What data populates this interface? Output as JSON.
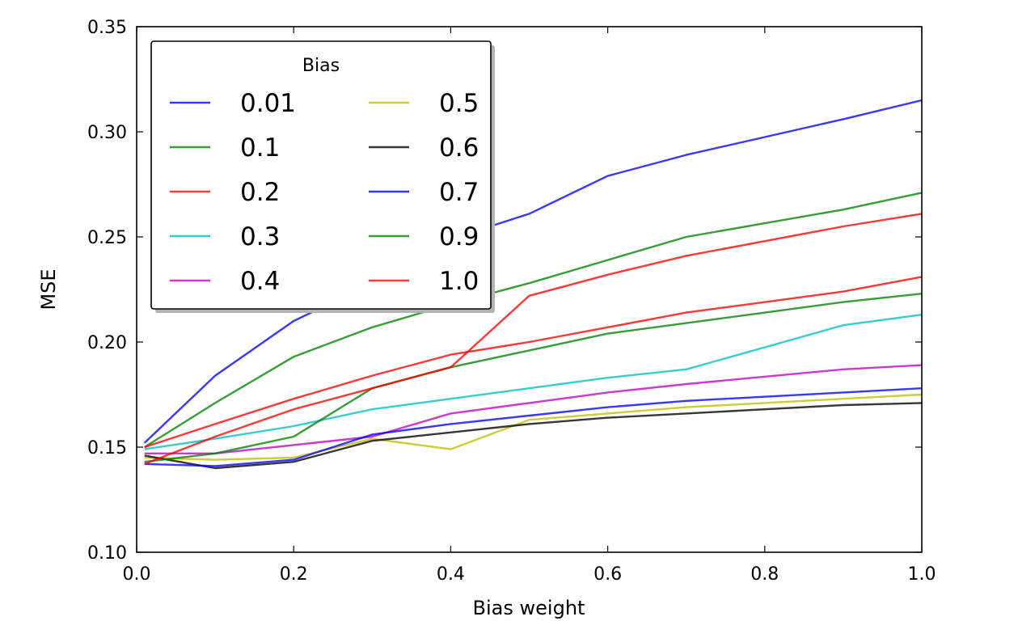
{
  "chart_data": {
    "type": "line",
    "title": "",
    "xlabel": "Bias weight",
    "ylabel": "MSE",
    "xlim": [
      0.0,
      1.0
    ],
    "ylim": [
      0.1,
      0.35
    ],
    "xticks": [
      "0.0",
      "0.2",
      "0.4",
      "0.6",
      "0.8",
      "1.0"
    ],
    "yticks": [
      "0.10",
      "0.15",
      "0.20",
      "0.25",
      "0.30",
      "0.35"
    ],
    "grid": false,
    "legend": {
      "title": "Bias",
      "position": "top-left",
      "columns": 2
    },
    "x": [
      0.01,
      0.1,
      0.2,
      0.3,
      0.4,
      0.5,
      0.6,
      0.7,
      0.9,
      1.0
    ],
    "series": [
      {
        "name": "0.01",
        "color": "#0000ff",
        "values": [
          0.152,
          0.184,
          0.21,
          0.228,
          0.249,
          0.261,
          0.279,
          0.289,
          0.306,
          0.315
        ]
      },
      {
        "name": "0.1",
        "color": "#008000",
        "values": [
          0.15,
          0.171,
          0.193,
          0.207,
          0.218,
          0.228,
          0.239,
          0.25,
          0.263,
          0.271
        ]
      },
      {
        "name": "0.2",
        "color": "#ff0000",
        "values": [
          0.15,
          0.161,
          0.173,
          0.184,
          0.194,
          0.2,
          0.207,
          0.214,
          0.224,
          0.231
        ]
      },
      {
        "name": "0.3",
        "color": "#00bfbf",
        "values": [
          0.149,
          0.154,
          0.16,
          0.168,
          0.173,
          0.178,
          0.183,
          0.187,
          0.208,
          0.213
        ]
      },
      {
        "name": "0.4",
        "color": "#bf00bf",
        "values": [
          0.147,
          0.147,
          0.151,
          0.155,
          0.166,
          0.171,
          0.176,
          0.18,
          0.187,
          0.189
        ]
      },
      {
        "name": "0.5",
        "color": "#bfbf00",
        "values": [
          0.145,
          0.144,
          0.145,
          0.154,
          0.149,
          0.163,
          0.166,
          0.169,
          0.173,
          0.175
        ]
      },
      {
        "name": "0.6",
        "color": "#000000",
        "values": [
          0.146,
          0.14,
          0.143,
          0.153,
          0.157,
          0.161,
          0.164,
          0.166,
          0.17,
          0.171
        ]
      },
      {
        "name": "0.7",
        "color": "#0000ff",
        "values": [
          0.142,
          0.141,
          0.144,
          0.156,
          0.161,
          0.165,
          0.169,
          0.172,
          0.176,
          0.178
        ]
      },
      {
        "name": "0.9",
        "color": "#008000",
        "values": [
          0.143,
          0.147,
          0.155,
          0.178,
          0.188,
          0.196,
          0.204,
          0.209,
          0.219,
          0.223
        ]
      },
      {
        "name": "1.0",
        "color": "#ff0000",
        "values": [
          0.142,
          0.155,
          0.168,
          0.178,
          0.188,
          0.222,
          0.232,
          0.241,
          0.255,
          0.261
        ]
      }
    ]
  }
}
